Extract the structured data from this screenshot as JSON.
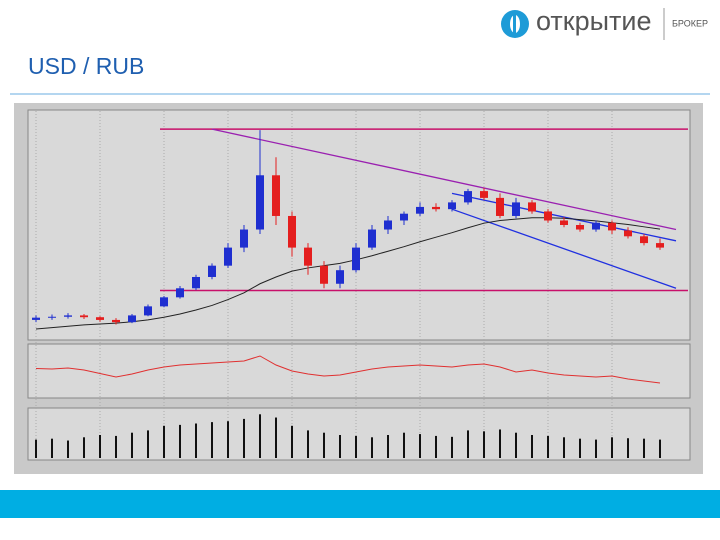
{
  "header": {
    "title": "USD / RUB",
    "brand": "открытие",
    "brand_sub": "БРОКЕР"
  },
  "chart_data": {
    "type": "candlestick",
    "ylim": [
      30,
      80
    ],
    "up_color": "#1f2fd0",
    "down_color": "#e41e1e",
    "open": [
      34,
      34.5,
      34.7,
      35,
      34.6,
      34,
      33.5,
      35,
      37,
      39,
      41,
      43.5,
      46,
      50,
      54,
      66,
      57,
      50,
      46,
      42,
      45,
      50,
      54,
      56,
      57.5,
      59,
      58.5,
      60,
      62.5,
      61,
      57,
      60,
      58,
      56,
      55,
      54,
      55.5,
      53.8,
      52.5,
      51
    ],
    "high": [
      35,
      35.2,
      35.5,
      35.3,
      34.8,
      34.4,
      35.3,
      37.4,
      39.3,
      41.5,
      44,
      46.5,
      51,
      55,
      76,
      70,
      58,
      51,
      47,
      46,
      51,
      55,
      57,
      58,
      60,
      59.8,
      60.5,
      63,
      63.2,
      62,
      61,
      60.5,
      58.5,
      56.8,
      55.5,
      56,
      56,
      54.5,
      53,
      52
    ],
    "low": [
      33.5,
      34,
      34.3,
      34.2,
      33.6,
      33,
      33.3,
      34.8,
      36.8,
      38.7,
      40.6,
      43,
      45.5,
      49,
      53,
      55,
      48,
      44,
      41,
      41,
      44.5,
      49.5,
      53,
      55,
      57,
      58,
      58,
      59.5,
      60.5,
      56.5,
      56.5,
      57.5,
      55.5,
      54.5,
      53.5,
      53.5,
      53,
      52,
      50.5,
      49.5
    ],
    "close": [
      34.5,
      34.7,
      35,
      34.6,
      34,
      33.5,
      35,
      37,
      39,
      41,
      43.5,
      46,
      50,
      54,
      66,
      57,
      50,
      46,
      42,
      45,
      50,
      54,
      56,
      57.5,
      59,
      58.5,
      60,
      62.5,
      61,
      57,
      60,
      58,
      56,
      55,
      54,
      55.5,
      53.8,
      52.5,
      51,
      50
    ],
    "moving_average": {
      "color": "#222222",
      "values": [
        32,
        32.3,
        32.6,
        32.9,
        33.1,
        33.3,
        33.6,
        34,
        34.6,
        35.3,
        36.2,
        37.2,
        38.5,
        40,
        42,
        43.5,
        44.8,
        45.5,
        46,
        46.5,
        47.3,
        48.2,
        49.2,
        50.2,
        51.3,
        52.3,
        53.3,
        54.4,
        55.4,
        56,
        56.3,
        56.6,
        56.6,
        56.5,
        56.2,
        55.9,
        55.5,
        55.1,
        54.6,
        54.1
      ]
    },
    "levels": [
      {
        "color": "#c8106a",
        "value": 76.2
      },
      {
        "color": "#c8106a",
        "value": 40.5
      }
    ],
    "trendlines": [
      {
        "color": "#9a20b0",
        "x": [
          11,
          40
        ],
        "values": [
          76.2,
          54
        ]
      },
      {
        "color": "#2030e0",
        "x": [
          26,
          40
        ],
        "values": [
          62,
          51.5
        ]
      },
      {
        "color": "#2030e0",
        "x": [
          26,
          40
        ],
        "values": [
          58.5,
          41
        ]
      }
    ],
    "indicator": {
      "color": "#e03030",
      "ylim": [
        0,
        100
      ],
      "values": [
        55,
        54,
        56,
        52,
        45,
        38,
        44,
        52,
        58,
        62,
        64,
        66,
        68,
        70,
        80,
        62,
        50,
        44,
        40,
        42,
        48,
        54,
        58,
        60,
        62,
        60,
        58,
        62,
        64,
        58,
        48,
        52,
        46,
        42,
        40,
        38,
        40,
        34,
        30,
        26
      ]
    },
    "volume": {
      "color": "#111111",
      "ylim": [
        0,
        100
      ],
      "values": [
        40,
        42,
        38,
        45,
        50,
        48,
        55,
        60,
        70,
        72,
        75,
        78,
        80,
        85,
        95,
        88,
        70,
        60,
        55,
        50,
        48,
        45,
        50,
        55,
        52,
        48,
        46,
        60,
        58,
        62,
        55,
        50,
        48,
        45,
        42,
        40,
        45,
        43,
        42,
        40
      ]
    }
  }
}
